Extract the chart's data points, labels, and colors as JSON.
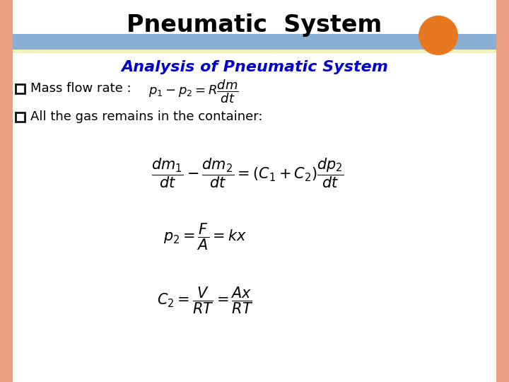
{
  "title": "Pneumatic  System",
  "subtitle": "Analysis of Pneumatic System",
  "bullet1_text": "Mass flow rate : ",
  "bullet1_formula": "$p_1 - p_2 = R\\dfrac{dm}{dt}$",
  "bullet2_text": "All the gas remains in the container:",
  "formula2": "$\\dfrac{dm_1}{dt} - \\dfrac{dm_2}{dt} = (C_1 + C_2)\\dfrac{dp_2}{dt}$",
  "formula3": "$p_2 = \\dfrac{F}{A} = kx$",
  "formula4": "$C_2 = \\dfrac{V}{RT} = \\dfrac{Ax}{RT}$",
  "bg_outer_color": "#f0c0a0",
  "bg_inner_color": "#ffffff",
  "header_bar_color": "#8aafd4",
  "header_bar_color2": "#f0f0c0",
  "title_color": "#000000",
  "subtitle_color": "#0000cc",
  "bullet_color": "#000000",
  "formula_color": "#000000",
  "orange_circle_color": "#e87820",
  "border_color": "#e8a080"
}
